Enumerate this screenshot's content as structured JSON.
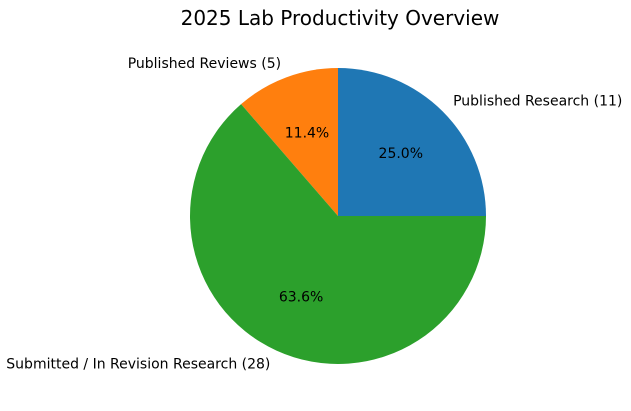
{
  "chart_data": {
    "type": "pie",
    "title": "2025 Lab Productivity Overview",
    "total": 44,
    "start_angle_deg": 0,
    "direction": "counterclockwise",
    "label_distance": 1.1,
    "pct_distance": 0.6,
    "background_color": "#ffffff",
    "text_color": "#000000",
    "slices": [
      {
        "label": "Published Research (11)",
        "value": 11,
        "percent": 25.0,
        "pct_label": "25.0%",
        "color": "#1f77b4"
      },
      {
        "label": "Published Reviews (5)",
        "value": 5,
        "percent": 11.4,
        "pct_label": "11.4%",
        "color": "#ff7f0e"
      },
      {
        "label": "Submitted / In Revision Research (28)",
        "value": 28,
        "percent": 63.6,
        "pct_label": "63.6%",
        "color": "#2ca02c"
      }
    ]
  }
}
